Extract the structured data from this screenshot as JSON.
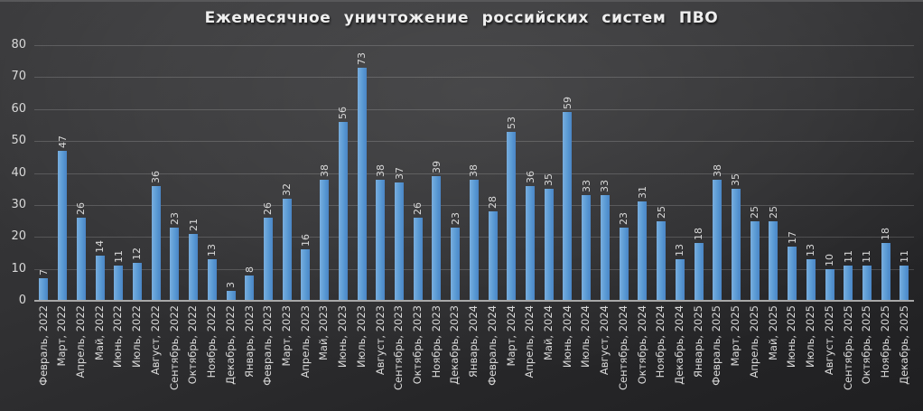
{
  "chart_data": {
    "type": "bar",
    "title": "Ежемесячное  уничтожение  российских  систем  ПВО",
    "xlabel": "",
    "ylabel": "",
    "ylim": [
      0,
      80
    ],
    "yticks": [
      0,
      10,
      20,
      30,
      40,
      50,
      60,
      70,
      80
    ],
    "grid": true,
    "legend": "none",
    "bar_color": "#5b9bd5",
    "bar_gradient": [
      "#79aede",
      "#5b9bd5",
      "#4a85c5"
    ],
    "background_color": "#2e2e30",
    "text_color": "#d9d9d9",
    "title_color": "#efefef",
    "gridline_color": "#5c5c5e",
    "axis_line_color": "#a8a8a8",
    "categories": [
      "Февраль, 2022",
      "Март, 2022",
      "Апрель, 2022",
      "Май, 2022",
      "Июнь, 2022",
      "Июль, 2022",
      "Август, 2022",
      "Сентябрь, 2022",
      "Октябрь, 2022",
      "Ноябрь, 2022",
      "Декабрь, 2022",
      "Январь, 2023",
      "Февраль, 2023",
      "Март, 2023",
      "Апрель, 2023",
      "Май, 2023",
      "Июнь, 2023",
      "Июль, 2023",
      "Август, 2023",
      "Сентябрь, 2023",
      "Октябрь, 2023",
      "Ноябрь, 2023",
      "Декабрь, 2023",
      "Январь, 2024",
      "Февраль, 2024",
      "Март, 2024",
      "Апрель, 2024",
      "Май, 2024",
      "Июнь, 2024",
      "Июль, 2024",
      "Август, 2024",
      "Сентябрь, 2024",
      "Октябрь, 2024",
      "Ноябрь, 2024",
      "Декабрь, 2024",
      "Январь, 2025",
      "Февраль, 2025",
      "Март, 2025",
      "Апрель, 2025",
      "Май, 2025",
      "Июнь, 2025",
      "Июль, 2025",
      "Август, 2025",
      "Сентябрь, 2025",
      "Октябрь, 2025",
      "Ноябрь, 2025",
      "Декабрь, 2025"
    ],
    "values": [
      7,
      47,
      26,
      14,
      11,
      12,
      36,
      23,
      21,
      13,
      3,
      8,
      26,
      32,
      16,
      38,
      56,
      73,
      38,
      37,
      26,
      39,
      23,
      38,
      28,
      53,
      36,
      35,
      59,
      33,
      33,
      23,
      31,
      25,
      13,
      18,
      38,
      35,
      25,
      25,
      17,
      13,
      10,
      11,
      11,
      18,
      11
    ]
  }
}
